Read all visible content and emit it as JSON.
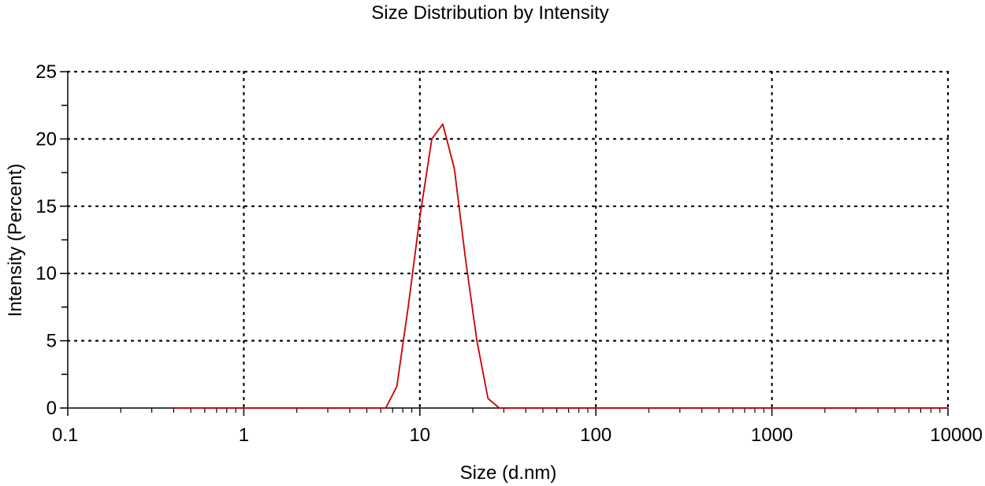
{
  "chart_data": {
    "type": "line",
    "title": "Size Distribution by Intensity",
    "xlabel": "Size (d.nm)",
    "ylabel": "Intensity (Percent)",
    "x_scale": "log",
    "xlim": [
      0.1,
      10000
    ],
    "ylim": [
      0,
      25
    ],
    "x_ticks": [
      0.1,
      1,
      10,
      100,
      1000,
      10000
    ],
    "x_tick_labels": [
      "0.1",
      "1",
      "10",
      "100",
      "1000",
      "10000"
    ],
    "y_ticks": [
      0,
      5,
      10,
      15,
      20,
      25
    ],
    "y_tick_labels": [
      "0",
      "5",
      "10",
      "15",
      "20",
      "25"
    ],
    "grid": true,
    "series": [
      {
        "color": "#cc0000",
        "x": [
          0.4,
          0.6,
          1,
          2,
          4,
          6.4,
          7.4,
          8.6,
          10,
          11.7,
          13.5,
          15.7,
          18.2,
          21.1,
          24.4,
          28.3,
          40,
          100,
          1000,
          5000,
          10000
        ],
        "y": [
          0,
          0,
          0,
          0,
          0,
          0,
          1.6,
          7.6,
          14.2,
          20.0,
          21.1,
          17.8,
          11.0,
          5.0,
          0.7,
          0,
          0,
          0,
          0,
          0,
          0
        ]
      }
    ]
  }
}
